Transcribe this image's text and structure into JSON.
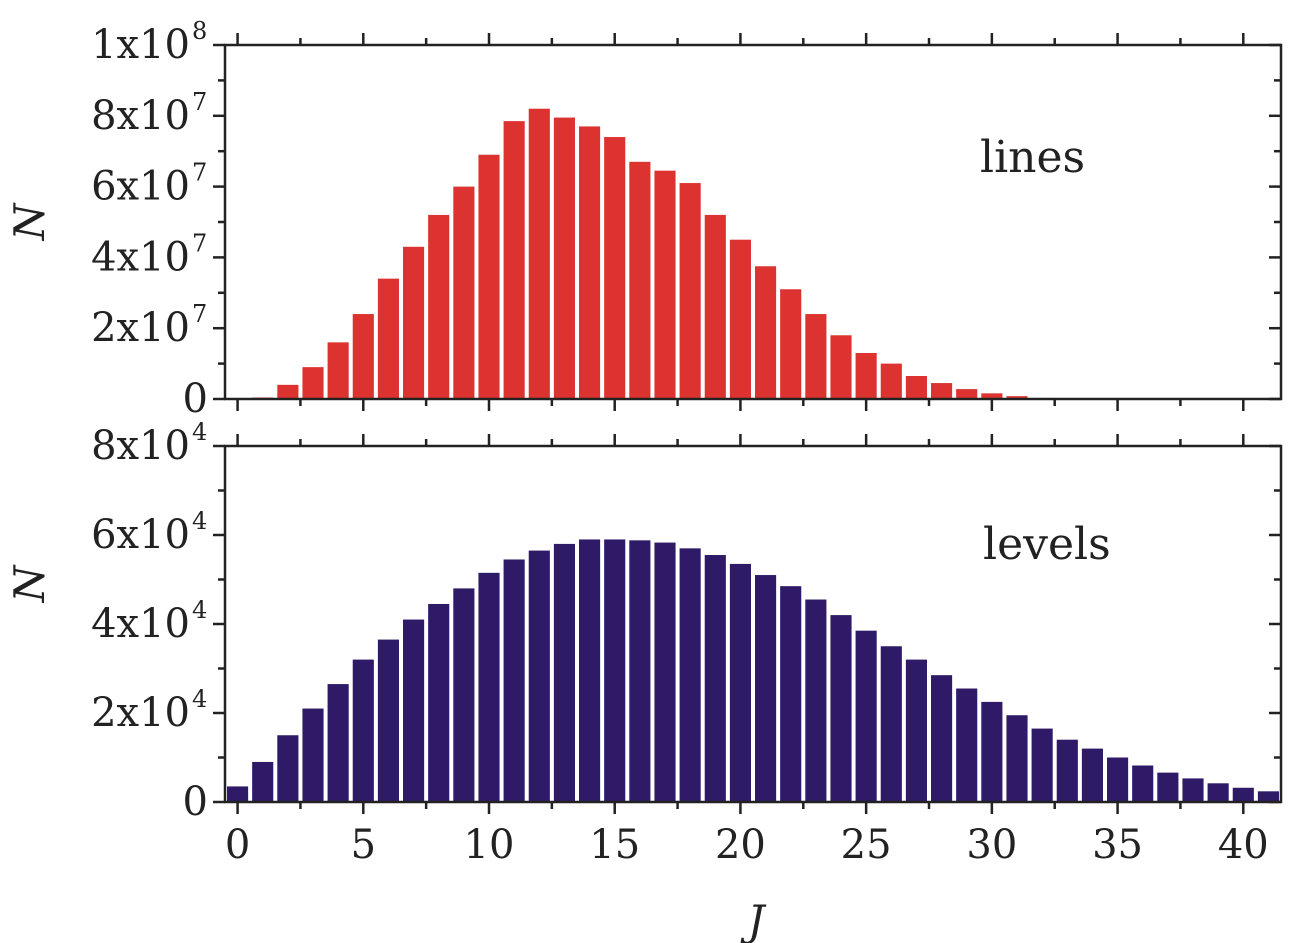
{
  "chart_data": [
    {
      "type": "bar",
      "panel": "top",
      "annotation": "lines",
      "ylabel": "N",
      "xlabel": "",
      "xlim": [
        -0.5,
        41.5
      ],
      "ylim": [
        0,
        100000000
      ],
      "x": [
        0,
        1,
        2,
        3,
        4,
        5,
        6,
        7,
        8,
        9,
        10,
        11,
        12,
        13,
        14,
        15,
        16,
        17,
        18,
        19,
        20,
        21,
        22,
        23,
        24,
        25,
        26,
        27,
        28,
        29,
        30,
        31,
        32,
        33,
        34,
        35,
        36,
        37,
        38,
        39,
        40,
        41
      ],
      "values": [
        0,
        400000,
        4000000,
        9000000,
        16000000,
        24000000,
        34000000,
        43000000,
        52000000,
        60000000,
        69000000,
        78500000,
        82000000,
        79500000,
        77000000,
        74000000,
        67000000,
        64500000,
        61000000,
        52000000,
        45000000,
        37500000,
        31000000,
        24000000,
        18000000,
        13000000,
        10000000,
        6500000,
        4500000,
        2800000,
        1600000,
        800000,
        300000,
        100000,
        0,
        0,
        0,
        0,
        0,
        0,
        0,
        0
      ],
      "y_ticks": [
        {
          "value": 0,
          "mantissa": "0",
          "exponent": ""
        },
        {
          "value": 20000000,
          "mantissa": "2x10",
          "exponent": "7"
        },
        {
          "value": 40000000,
          "mantissa": "4x10",
          "exponent": "7"
        },
        {
          "value": 60000000,
          "mantissa": "6x10",
          "exponent": "7"
        },
        {
          "value": 80000000,
          "mantissa": "8x10",
          "exponent": "7"
        },
        {
          "value": 100000000,
          "mantissa": "1x10",
          "exponent": "8"
        }
      ],
      "y_minor_step": 10000000,
      "color": "#dc3330"
    },
    {
      "type": "bar",
      "panel": "bottom",
      "annotation": "levels",
      "ylabel": "N",
      "xlabel": "J",
      "xlim": [
        -0.5,
        41.5
      ],
      "ylim": [
        0,
        80000
      ],
      "x": [
        0,
        1,
        2,
        3,
        4,
        5,
        6,
        7,
        8,
        9,
        10,
        11,
        12,
        13,
        14,
        15,
        16,
        17,
        18,
        19,
        20,
        21,
        22,
        23,
        24,
        25,
        26,
        27,
        28,
        29,
        30,
        31,
        32,
        33,
        34,
        35,
        36,
        37,
        38,
        39,
        40,
        41
      ],
      "values": [
        3500,
        9000,
        15000,
        21000,
        26500,
        32000,
        36500,
        41000,
        44500,
        48000,
        51500,
        54500,
        56500,
        58000,
        59000,
        59000,
        58800,
        58300,
        57000,
        55500,
        53500,
        51000,
        48500,
        45500,
        42000,
        38500,
        35000,
        32000,
        28500,
        25500,
        22500,
        19500,
        16500,
        14000,
        12000,
        10000,
        8200,
        6600,
        5300,
        4200,
        3200,
        2400
      ],
      "y_ticks": [
        {
          "value": 0,
          "mantissa": "0",
          "exponent": ""
        },
        {
          "value": 20000,
          "mantissa": "2x10",
          "exponent": "4"
        },
        {
          "value": 40000,
          "mantissa": "4x10",
          "exponent": "4"
        },
        {
          "value": 60000,
          "mantissa": "6x10",
          "exponent": "4"
        },
        {
          "value": 80000,
          "mantissa": "8x10",
          "exponent": "4"
        }
      ],
      "y_minor_step": 10000,
      "color": "#2e1a66"
    }
  ],
  "x_tick_labels": [
    "0",
    "5",
    "10",
    "15",
    "20",
    "25",
    "30",
    "35",
    "40"
  ],
  "x_tick_values": [
    0,
    5,
    10,
    15,
    20,
    25,
    30,
    35,
    40
  ]
}
